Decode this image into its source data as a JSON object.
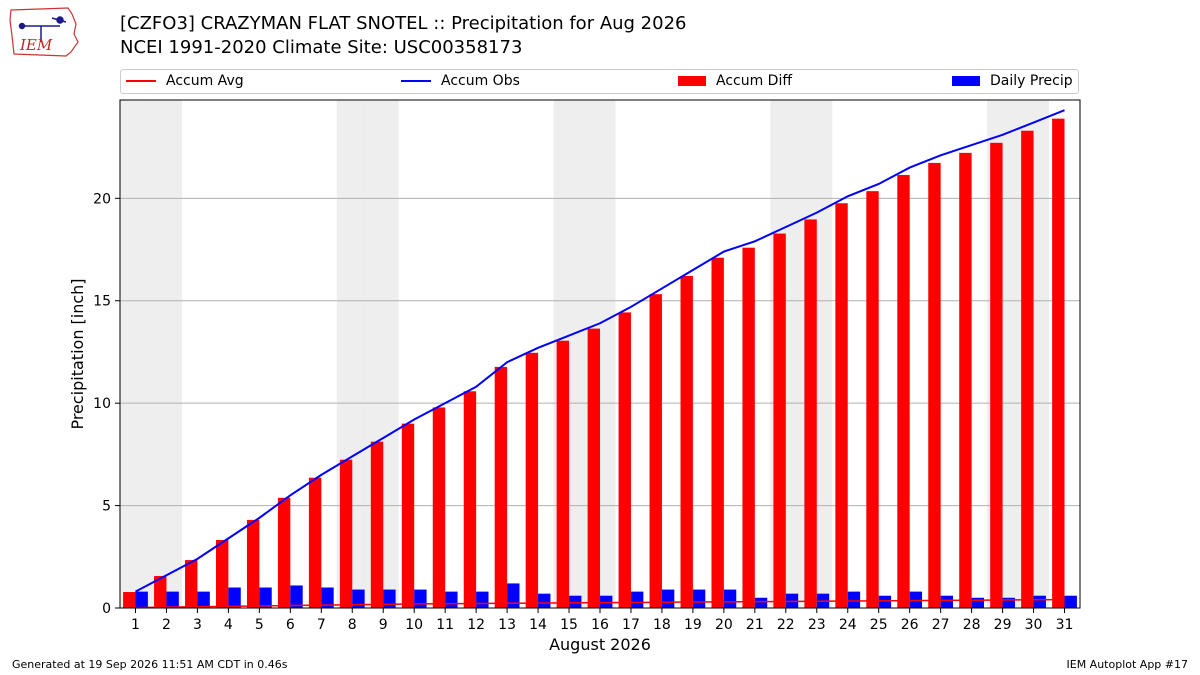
{
  "header": {
    "title_line1": "[CZFO3] CRAZYMAN FLAT SNOTEL :: Precipitation for Aug 2026",
    "title_line2": "NCEI 1991-2020 Climate Site: USC00358173",
    "logo_text": "IEM"
  },
  "footer": {
    "left": "Generated at 19 Sep 2026 11:51 AM CDT in 0.46s",
    "right": "IEM Autoplot App #17"
  },
  "colors": {
    "accum_avg": "#ff0000",
    "accum_obs": "#0000ff",
    "accum_diff": "#ff0000",
    "daily_precip": "#0000ff",
    "weekend_shade": "#eeeeee",
    "grid": "#b0b0b0"
  },
  "chart_data": {
    "type": "bar",
    "xlabel": "August 2026",
    "ylabel": "Precipitation [inch]",
    "ylim": [
      0,
      24.8
    ],
    "yticks": [
      0,
      5,
      10,
      15,
      20
    ],
    "grid": "horizontal",
    "legend_position": "top",
    "categories": [
      1,
      2,
      3,
      4,
      5,
      6,
      7,
      8,
      9,
      10,
      11,
      12,
      13,
      14,
      15,
      16,
      17,
      18,
      19,
      20,
      21,
      22,
      23,
      24,
      25,
      26,
      27,
      28,
      29,
      30,
      31
    ],
    "shaded_days": [
      1,
      2,
      8,
      9,
      15,
      16,
      22,
      23,
      29,
      30
    ],
    "series": [
      {
        "name": "Accum Avg",
        "kind": "line",
        "values": [
          0.02,
          0.04,
          0.06,
          0.08,
          0.1,
          0.12,
          0.14,
          0.16,
          0.18,
          0.2,
          0.21,
          0.22,
          0.23,
          0.24,
          0.25,
          0.26,
          0.27,
          0.28,
          0.29,
          0.3,
          0.31,
          0.32,
          0.33,
          0.34,
          0.35,
          0.36,
          0.37,
          0.38,
          0.39,
          0.4,
          0.41
        ]
      },
      {
        "name": "Accum Obs",
        "kind": "line",
        "values": [
          0.8,
          1.6,
          2.4,
          3.4,
          4.4,
          5.5,
          6.5,
          7.4,
          8.3,
          9.2,
          10.0,
          10.8,
          12.0,
          12.7,
          13.3,
          13.9,
          14.7,
          15.6,
          16.5,
          17.4,
          17.9,
          18.6,
          19.3,
          20.1,
          20.7,
          21.5,
          22.1,
          22.6,
          23.1,
          23.7,
          24.3
        ]
      },
      {
        "name": "Accum Diff",
        "kind": "bar",
        "values": [
          0.78,
          1.56,
          2.34,
          3.32,
          4.3,
          5.38,
          6.36,
          7.24,
          8.12,
          9.0,
          9.79,
          10.58,
          11.77,
          12.46,
          13.05,
          13.64,
          14.43,
          15.32,
          16.21,
          17.1,
          17.59,
          18.28,
          18.97,
          19.76,
          20.35,
          21.14,
          21.73,
          22.22,
          22.71,
          23.3,
          23.89
        ]
      },
      {
        "name": "Daily Precip",
        "kind": "bar",
        "values": [
          0.8,
          0.8,
          0.8,
          1.0,
          1.0,
          1.1,
          1.0,
          0.9,
          0.9,
          0.9,
          0.8,
          0.8,
          1.2,
          0.7,
          0.6,
          0.6,
          0.8,
          0.9,
          0.9,
          0.9,
          0.5,
          0.7,
          0.7,
          0.8,
          0.6,
          0.8,
          0.6,
          0.5,
          0.5,
          0.6,
          0.6
        ]
      }
    ]
  }
}
